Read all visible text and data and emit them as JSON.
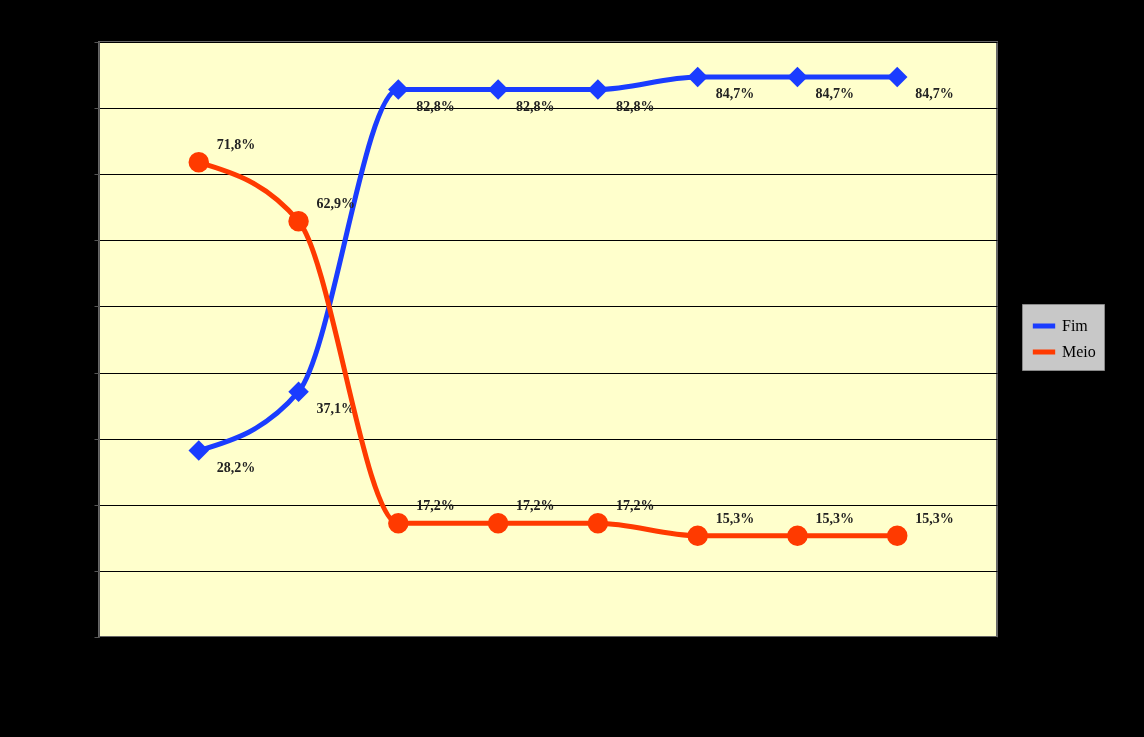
{
  "chart_data": {
    "type": "line",
    "categories": [
      null,
      null,
      null,
      null,
      null,
      null,
      null,
      null
    ],
    "series": [
      {
        "name": "Fim",
        "color": "#1a3cff",
        "marker": "diamond",
        "values": [
          28.2,
          37.1,
          82.8,
          82.8,
          82.8,
          84.7,
          84.7,
          84.7
        ],
        "value_labels": [
          "28,2%",
          "37,1%",
          "82,8%",
          "82,8%",
          "82,8%",
          "84,7%",
          "84,7%",
          "84,7%"
        ]
      },
      {
        "name": "Meio",
        "color": "#ff3a00",
        "marker": "circle",
        "values": [
          71.8,
          62.9,
          17.2,
          17.2,
          17.2,
          15.3,
          15.3,
          15.3
        ],
        "value_labels": [
          "71,8%",
          "62,9%",
          "17,2%",
          "17,2%",
          "17,2%",
          "15,3%",
          "15,3%",
          "15,3%"
        ]
      }
    ],
    "ylim": [
      0,
      90
    ],
    "yticks": [
      {
        "value": 0,
        "label": null
      },
      {
        "value": 10,
        "label": null
      },
      {
        "value": 20,
        "label": null
      },
      {
        "value": 30,
        "label": null
      },
      {
        "value": 40,
        "label": null
      },
      {
        "value": 50,
        "label": null
      },
      {
        "value": 60,
        "label": null
      },
      {
        "value": 70,
        "label": null
      },
      {
        "value": 80,
        "label": null
      },
      {
        "value": 90,
        "label": null
      }
    ],
    "grid": "y",
    "legend": "right"
  }
}
